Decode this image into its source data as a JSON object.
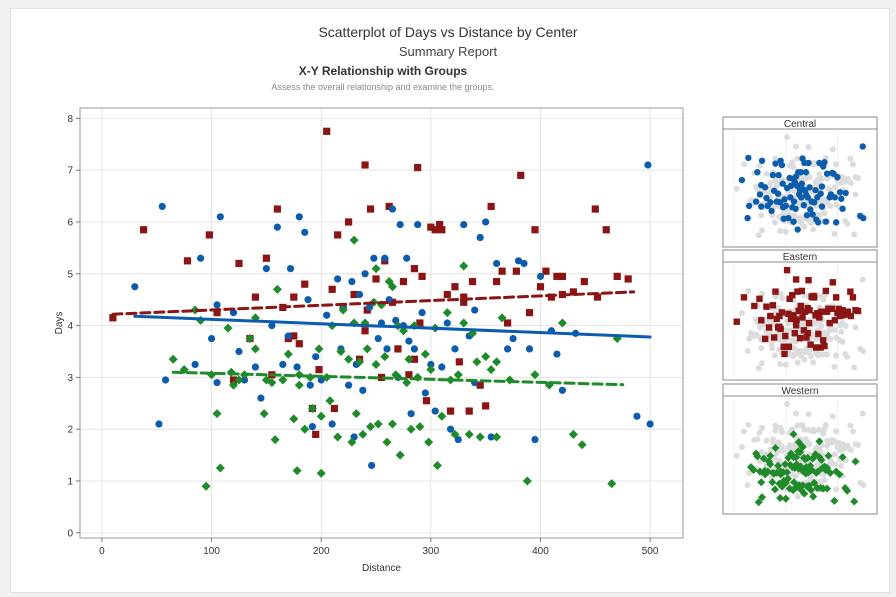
{
  "header": {
    "title": "Scatterplot of Days vs Distance by Center",
    "subtitle": "Summary Report",
    "section_title": "X-Y Relationship with Groups",
    "section_subtitle": "Assess the overall relationship and examine the groups."
  },
  "colors": {
    "Central": "#0b5cad",
    "Eastern": "#8b1414",
    "Western": "#1f8a2a",
    "grid": "#e4e4e4",
    "background_points": "#dcdcdc"
  },
  "chart_data": {
    "type": "scatter",
    "xlabel": "Distance",
    "ylabel": "Days",
    "xlim": [
      -20,
      530
    ],
    "ylim": [
      -0.1,
      8.2
    ],
    "x_ticks": [
      0,
      100,
      200,
      300,
      400,
      500
    ],
    "y_ticks": [
      0,
      1,
      2,
      3,
      4,
      5,
      6,
      7,
      8
    ],
    "grid": true,
    "fit_lines": [
      {
        "series": "Central",
        "x": [
          30,
          500
        ],
        "y": [
          4.18,
          3.78
        ],
        "style": "solid"
      },
      {
        "series": "Eastern",
        "x": [
          10,
          485
        ],
        "y": [
          4.22,
          4.65
        ],
        "style": "dashed"
      },
      {
        "series": "Western",
        "x": [
          65,
          475
        ],
        "y": [
          3.1,
          2.86
        ],
        "style": "dashed"
      }
    ],
    "panels": [
      "Central",
      "Eastern",
      "Western"
    ],
    "series": [
      {
        "name": "Central",
        "marker": "circle",
        "points": [
          [
            30,
            4.75
          ],
          [
            55,
            6.3
          ],
          [
            52,
            2.1
          ],
          [
            58,
            2.95
          ],
          [
            85,
            3.25
          ],
          [
            90,
            5.3
          ],
          [
            100,
            3.75
          ],
          [
            105,
            2.9
          ],
          [
            108,
            6.1
          ],
          [
            120,
            4.25
          ],
          [
            130,
            2.95
          ],
          [
            140,
            3.2
          ],
          [
            150,
            5.1
          ],
          [
            155,
            4.0
          ],
          [
            160,
            5.9
          ],
          [
            165,
            3.25
          ],
          [
            170,
            3.8
          ],
          [
            172,
            5.1
          ],
          [
            178,
            3.2
          ],
          [
            180,
            6.1
          ],
          [
            185,
            5.8
          ],
          [
            188,
            4.5
          ],
          [
            190,
            2.85
          ],
          [
            192,
            2.05
          ],
          [
            195,
            3.4
          ],
          [
            200,
            2.95
          ],
          [
            205,
            4.2
          ],
          [
            210,
            2.1
          ],
          [
            215,
            4.9
          ],
          [
            218,
            3.55
          ],
          [
            220,
            4.35
          ],
          [
            225,
            2.85
          ],
          [
            228,
            4.85
          ],
          [
            232,
            3.25
          ],
          [
            235,
            4.6
          ],
          [
            238,
            2.75
          ],
          [
            240,
            5.0
          ],
          [
            244,
            4.35
          ],
          [
            246,
            1.3
          ],
          [
            248,
            5.3
          ],
          [
            252,
            3.75
          ],
          [
            255,
            4.05
          ],
          [
            258,
            5.3
          ],
          [
            260,
            3.55
          ],
          [
            262,
            4.5
          ],
          [
            265,
            6.25
          ],
          [
            268,
            4.1
          ],
          [
            270,
            3.0
          ],
          [
            272,
            5.95
          ],
          [
            275,
            4.0
          ],
          [
            278,
            5.3
          ],
          [
            280,
            3.7
          ],
          [
            282,
            2.3
          ],
          [
            285,
            3.55
          ],
          [
            288,
            5.95
          ],
          [
            292,
            4.25
          ],
          [
            295,
            2.7
          ],
          [
            300,
            3.25
          ],
          [
            304,
            2.35
          ],
          [
            310,
            3.2
          ],
          [
            315,
            4.05
          ],
          [
            318,
            2.0
          ],
          [
            322,
            3.55
          ],
          [
            325,
            1.8
          ],
          [
            330,
            5.95
          ],
          [
            335,
            3.8
          ],
          [
            340,
            4.3
          ],
          [
            345,
            5.7
          ],
          [
            350,
            6.0
          ],
          [
            355,
            1.85
          ],
          [
            360,
            5.2
          ],
          [
            370,
            3.55
          ],
          [
            375,
            3.75
          ],
          [
            380,
            5.25
          ],
          [
            385,
            5.2
          ],
          [
            390,
            3.55
          ],
          [
            395,
            1.8
          ],
          [
            400,
            4.95
          ],
          [
            410,
            3.9
          ],
          [
            415,
            3.45
          ],
          [
            420,
            2.75
          ],
          [
            432,
            3.85
          ],
          [
            488,
            2.25
          ],
          [
            498,
            7.1
          ],
          [
            500,
            2.1
          ],
          [
            105,
            4.4
          ],
          [
            125,
            3.5
          ],
          [
            145,
            2.6
          ],
          [
            230,
            1.85
          ],
          [
            340,
            2.9
          ]
        ]
      },
      {
        "name": "Eastern",
        "marker": "square",
        "points": [
          [
            10,
            4.15
          ],
          [
            38,
            5.85
          ],
          [
            78,
            5.25
          ],
          [
            98,
            5.75
          ],
          [
            105,
            4.25
          ],
          [
            120,
            2.95
          ],
          [
            125,
            5.2
          ],
          [
            135,
            3.75
          ],
          [
            140,
            4.55
          ],
          [
            150,
            5.3
          ],
          [
            155,
            3.05
          ],
          [
            160,
            6.25
          ],
          [
            165,
            4.35
          ],
          [
            170,
            3.75
          ],
          [
            175,
            4.55
          ],
          [
            180,
            3.65
          ],
          [
            185,
            4.8
          ],
          [
            192,
            2.4
          ],
          [
            198,
            3.15
          ],
          [
            205,
            7.75
          ],
          [
            210,
            4.7
          ],
          [
            212,
            2.4
          ],
          [
            215,
            5.75
          ],
          [
            220,
            4.35
          ],
          [
            225,
            6.0
          ],
          [
            230,
            4.6
          ],
          [
            235,
            3.35
          ],
          [
            240,
            7.1
          ],
          [
            242,
            4.3
          ],
          [
            245,
            6.25
          ],
          [
            250,
            4.9
          ],
          [
            255,
            3.0
          ],
          [
            258,
            5.25
          ],
          [
            262,
            6.3
          ],
          [
            265,
            4.45
          ],
          [
            270,
            3.55
          ],
          [
            275,
            4.85
          ],
          [
            280,
            3.05
          ],
          [
            285,
            3.35
          ],
          [
            288,
            7.05
          ],
          [
            290,
            4.05
          ],
          [
            292,
            4.95
          ],
          [
            296,
            2.55
          ],
          [
            300,
            5.9
          ],
          [
            304,
            5.85
          ],
          [
            308,
            5.95
          ],
          [
            310,
            5.85
          ],
          [
            315,
            4.6
          ],
          [
            318,
            2.35
          ],
          [
            322,
            4.75
          ],
          [
            326,
            3.3
          ],
          [
            330,
            4.45
          ],
          [
            335,
            2.35
          ],
          [
            338,
            4.85
          ],
          [
            345,
            2.85
          ],
          [
            350,
            2.45
          ],
          [
            355,
            6.3
          ],
          [
            360,
            4.85
          ],
          [
            365,
            5.05
          ],
          [
            370,
            4.05
          ],
          [
            378,
            5.05
          ],
          [
            382,
            6.9
          ],
          [
            390,
            4.25
          ],
          [
            395,
            5.85
          ],
          [
            400,
            4.75
          ],
          [
            405,
            5.05
          ],
          [
            410,
            4.55
          ],
          [
            415,
            4.95
          ],
          [
            420,
            4.95
          ],
          [
            430,
            4.65
          ],
          [
            440,
            4.85
          ],
          [
            450,
            6.25
          ],
          [
            452,
            4.55
          ],
          [
            460,
            5.85
          ],
          [
            470,
            4.95
          ],
          [
            480,
            4.9
          ],
          [
            195,
            1.9
          ],
          [
            175,
            3.8
          ],
          [
            240,
            3.9
          ],
          [
            285,
            5.1
          ],
          [
            330,
            4.55
          ],
          [
            420,
            4.6
          ]
        ]
      },
      {
        "name": "Western",
        "marker": "diamond",
        "points": [
          [
            65,
            3.35
          ],
          [
            75,
            3.15
          ],
          [
            85,
            4.3
          ],
          [
            90,
            4.1
          ],
          [
            95,
            0.9
          ],
          [
            100,
            3.05
          ],
          [
            105,
            2.3
          ],
          [
            108,
            1.25
          ],
          [
            115,
            3.95
          ],
          [
            118,
            3.1
          ],
          [
            120,
            2.85
          ],
          [
            125,
            2.95
          ],
          [
            130,
            3.05
          ],
          [
            135,
            3.75
          ],
          [
            140,
            3.55
          ],
          [
            148,
            2.3
          ],
          [
            150,
            2.95
          ],
          [
            155,
            2.9
          ],
          [
            158,
            1.8
          ],
          [
            160,
            4.7
          ],
          [
            165,
            2.95
          ],
          [
            170,
            3.45
          ],
          [
            175,
            2.2
          ],
          [
            178,
            1.2
          ],
          [
            180,
            3.05
          ],
          [
            185,
            2.0
          ],
          [
            190,
            3.0
          ],
          [
            192,
            2.4
          ],
          [
            198,
            3.55
          ],
          [
            200,
            1.15
          ],
          [
            205,
            3.0
          ],
          [
            208,
            2.55
          ],
          [
            210,
            4.0
          ],
          [
            215,
            1.85
          ],
          [
            218,
            3.5
          ],
          [
            220,
            4.3
          ],
          [
            225,
            3.35
          ],
          [
            228,
            1.75
          ],
          [
            230,
            4.05
          ],
          [
            232,
            2.3
          ],
          [
            235,
            3.3
          ],
          [
            238,
            1.9
          ],
          [
            240,
            4.05
          ],
          [
            242,
            3.55
          ],
          [
            245,
            2.05
          ],
          [
            248,
            4.45
          ],
          [
            250,
            3.25
          ],
          [
            252,
            2.1
          ],
          [
            255,
            4.4
          ],
          [
            258,
            3.4
          ],
          [
            260,
            1.75
          ],
          [
            262,
            4.85
          ],
          [
            265,
            2.1
          ],
          [
            268,
            3.05
          ],
          [
            270,
            4.0
          ],
          [
            272,
            1.5
          ],
          [
            275,
            3.9
          ],
          [
            278,
            2.9
          ],
          [
            280,
            3.35
          ],
          [
            282,
            2.0
          ],
          [
            285,
            4.0
          ],
          [
            288,
            3.0
          ],
          [
            290,
            2.05
          ],
          [
            295,
            3.45
          ],
          [
            298,
            1.75
          ],
          [
            300,
            3.15
          ],
          [
            304,
            3.95
          ],
          [
            306,
            1.3
          ],
          [
            310,
            2.25
          ],
          [
            315,
            4.25
          ],
          [
            318,
            2.95
          ],
          [
            322,
            1.9
          ],
          [
            325,
            3.05
          ],
          [
            330,
            4.05
          ],
          [
            335,
            1.9
          ],
          [
            338,
            3.85
          ],
          [
            342,
            3.3
          ],
          [
            345,
            1.85
          ],
          [
            350,
            3.4
          ],
          [
            355,
            3.15
          ],
          [
            360,
            1.85
          ],
          [
            365,
            4.15
          ],
          [
            372,
            2.95
          ],
          [
            388,
            1.0
          ],
          [
            395,
            3.05
          ],
          [
            408,
            2.85
          ],
          [
            420,
            4.05
          ],
          [
            430,
            1.9
          ],
          [
            438,
            1.7
          ],
          [
            465,
            0.95
          ],
          [
            470,
            3.75
          ],
          [
            230,
            5.65
          ],
          [
            250,
            5.1
          ],
          [
            265,
            4.75
          ],
          [
            140,
            4.15
          ],
          [
            330,
            5.15
          ],
          [
            360,
            3.3
          ],
          [
            200,
            2.25
          ],
          [
            180,
            2.85
          ]
        ]
      }
    ]
  }
}
